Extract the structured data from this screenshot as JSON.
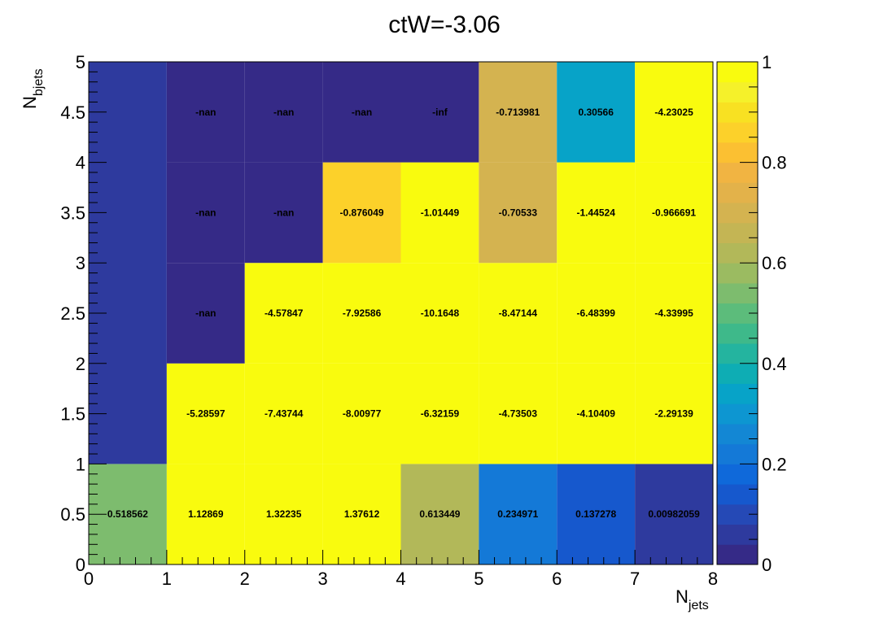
{
  "chart_data": {
    "type": "heatmap",
    "title": "ctW=-3.06",
    "xlabel": {
      "main": "N",
      "sub": "jets"
    },
    "ylabel": {
      "main": "N",
      "sub": "bjets"
    },
    "xlim": [
      0,
      8
    ],
    "ylim": [
      0,
      5
    ],
    "zlim": [
      0,
      1
    ],
    "x_ticks": [
      "0",
      "1",
      "2",
      "3",
      "4",
      "5",
      "6",
      "7",
      "8"
    ],
    "y_ticks": [
      "0",
      "0.5",
      "1",
      "1.5",
      "2",
      "2.5",
      "3",
      "3.5",
      "4",
      "4.5",
      "5"
    ],
    "z_ticks": [
      "0",
      "0.2",
      "0.4",
      "0.6",
      "0.8",
      "1"
    ],
    "palette": [
      "#352a87",
      "#2e3a9e",
      "#2549b6",
      "#1658cd",
      "#0f69da",
      "#1479d7",
      "#1387d4",
      "#0d96d1",
      "#07a3c8",
      "#0eadb4",
      "#24b49f",
      "#3eb98a",
      "#5cbc7b",
      "#7dbc6e",
      "#9bbb61",
      "#b2b859",
      "#c4b554",
      "#d4b350",
      "#e3b24a",
      "#f1b442",
      "#fbc032",
      "#fcd12a",
      "#f8e122",
      "#f5f12a",
      "#f9fb0e"
    ],
    "cells": [
      {
        "x": [
          0,
          1
        ],
        "y": [
          0,
          1
        ],
        "value": 0.518562,
        "color": 0.55,
        "label": "0.518562"
      },
      {
        "x": [
          1,
          2
        ],
        "y": [
          0,
          1
        ],
        "value": 1.12869,
        "color": 1,
        "label": "1.12869"
      },
      {
        "x": [
          2,
          3
        ],
        "y": [
          0,
          1
        ],
        "value": 1.32235,
        "color": 1,
        "label": "1.32235"
      },
      {
        "x": [
          3,
          4
        ],
        "y": [
          0,
          1
        ],
        "value": 1.37612,
        "color": 1,
        "label": "1.37612"
      },
      {
        "x": [
          4,
          5
        ],
        "y": [
          0,
          1
        ],
        "value": 0.613449,
        "color": 0.64,
        "label": "0.613449"
      },
      {
        "x": [
          5,
          6
        ],
        "y": [
          0,
          1
        ],
        "value": 0.234971,
        "color": 0.22,
        "label": "0.234971"
      },
      {
        "x": [
          6,
          7
        ],
        "y": [
          0,
          1
        ],
        "value": 0.137278,
        "color": 0.14,
        "label": "0.137278"
      },
      {
        "x": [
          7,
          8
        ],
        "y": [
          0,
          1
        ],
        "value": 0.00982059,
        "color": 0.04,
        "label": "0.00982059"
      },
      {
        "x": [
          0,
          1
        ],
        "y": [
          1,
          5
        ],
        "value": 0.05,
        "color": 0.05,
        "label": ""
      },
      {
        "x": [
          1,
          2
        ],
        "y": [
          1,
          2
        ],
        "value": -5.28597,
        "color": 1,
        "label": "-5.28597"
      },
      {
        "x": [
          2,
          3
        ],
        "y": [
          1,
          2
        ],
        "value": -7.43744,
        "color": 1,
        "label": "-7.43744"
      },
      {
        "x": [
          3,
          4
        ],
        "y": [
          1,
          2
        ],
        "value": -8.00977,
        "color": 1,
        "label": "-8.00977"
      },
      {
        "x": [
          4,
          5
        ],
        "y": [
          1,
          2
        ],
        "value": -6.32159,
        "color": 1,
        "label": "-6.32159"
      },
      {
        "x": [
          5,
          6
        ],
        "y": [
          1,
          2
        ],
        "value": -4.73503,
        "color": 1,
        "label": "-4.73503"
      },
      {
        "x": [
          6,
          7
        ],
        "y": [
          1,
          2
        ],
        "value": -4.10409,
        "color": 1,
        "label": "-4.10409"
      },
      {
        "x": [
          7,
          8
        ],
        "y": [
          1,
          2
        ],
        "value": -2.29139,
        "color": 1,
        "label": "-2.29139"
      },
      {
        "x": [
          1,
          2
        ],
        "y": [
          2,
          3
        ],
        "value": null,
        "color": 0,
        "label": "-nan"
      },
      {
        "x": [
          2,
          3
        ],
        "y": [
          2,
          3
        ],
        "value": -4.57847,
        "color": 1,
        "label": "-4.57847"
      },
      {
        "x": [
          3,
          4
        ],
        "y": [
          2,
          3
        ],
        "value": -7.92586,
        "color": 1,
        "label": "-7.92586"
      },
      {
        "x": [
          4,
          5
        ],
        "y": [
          2,
          3
        ],
        "value": -10.1648,
        "color": 1,
        "label": "-10.1648"
      },
      {
        "x": [
          5,
          6
        ],
        "y": [
          2,
          3
        ],
        "value": -8.47144,
        "color": 1,
        "label": "-8.47144"
      },
      {
        "x": [
          6,
          7
        ],
        "y": [
          2,
          3
        ],
        "value": -6.48399,
        "color": 1,
        "label": "-6.48399"
      },
      {
        "x": [
          7,
          8
        ],
        "y": [
          2,
          3
        ],
        "value": -4.33995,
        "color": 1,
        "label": "-4.33995"
      },
      {
        "x": [
          1,
          2
        ],
        "y": [
          3,
          4
        ],
        "value": null,
        "color": 0,
        "label": "-nan"
      },
      {
        "x": [
          2,
          3
        ],
        "y": [
          3,
          4
        ],
        "value": null,
        "color": 0,
        "label": "-nan"
      },
      {
        "x": [
          3,
          4
        ],
        "y": [
          3,
          4
        ],
        "value": -0.876049,
        "color": 0.86,
        "label": "-0.876049"
      },
      {
        "x": [
          4,
          5
        ],
        "y": [
          3,
          4
        ],
        "value": -1.01449,
        "color": 1,
        "label": "-1.01449"
      },
      {
        "x": [
          5,
          6
        ],
        "y": [
          3,
          4
        ],
        "value": -0.70533,
        "color": 0.71,
        "label": "-0.70533"
      },
      {
        "x": [
          6,
          7
        ],
        "y": [
          3,
          4
        ],
        "value": -1.44524,
        "color": 1,
        "label": "-1.44524"
      },
      {
        "x": [
          7,
          8
        ],
        "y": [
          3,
          4
        ],
        "value": -0.966691,
        "color": 1,
        "label": "-0.966691"
      },
      {
        "x": [
          1,
          2
        ],
        "y": [
          4,
          5
        ],
        "value": null,
        "color": 0,
        "label": "-nan"
      },
      {
        "x": [
          2,
          3
        ],
        "y": [
          4,
          5
        ],
        "value": null,
        "color": 0,
        "label": "-nan"
      },
      {
        "x": [
          3,
          4
        ],
        "y": [
          4,
          5
        ],
        "value": null,
        "color": 0,
        "label": "-nan"
      },
      {
        "x": [
          4,
          5
        ],
        "y": [
          4,
          5
        ],
        "value": null,
        "color": 0,
        "label": "-inf"
      },
      {
        "x": [
          5,
          6
        ],
        "y": [
          4,
          5
        ],
        "value": -0.713981,
        "color": 0.71,
        "label": "-0.713981"
      },
      {
        "x": [
          6,
          7
        ],
        "y": [
          4,
          5
        ],
        "value": 0.30566,
        "color": 0.32,
        "label": "0.30566"
      },
      {
        "x": [
          7,
          8
        ],
        "y": [
          4,
          5
        ],
        "value": -4.23025,
        "color": 1,
        "label": "-4.23025"
      }
    ]
  }
}
